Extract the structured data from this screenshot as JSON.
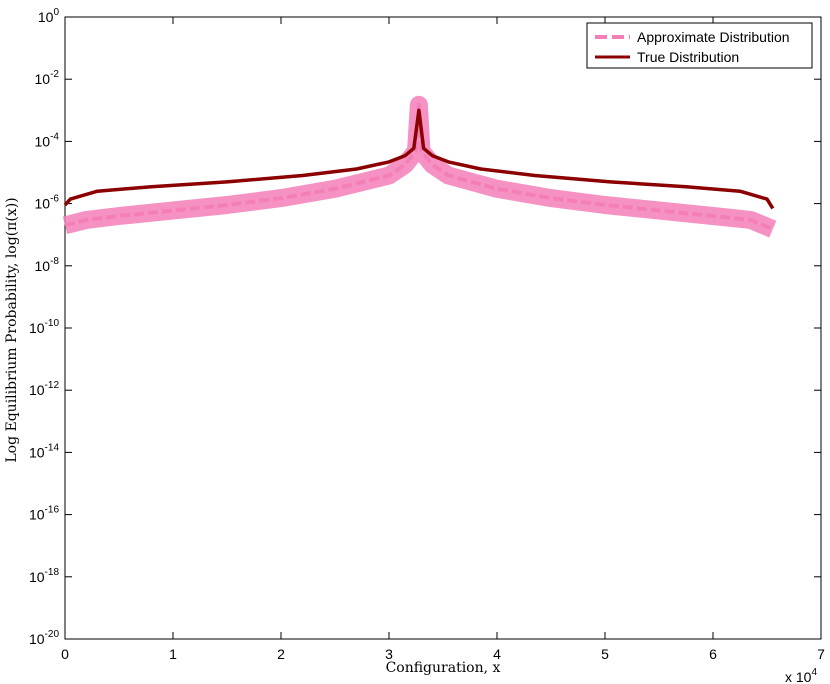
{
  "chart_data": {
    "type": "line",
    "xlabel": "Configuration, x",
    "ylabel": "Log Equilibrium Probability, log(π(x))",
    "x_scale_note": "x 10",
    "x_scale_exponent": "4",
    "xlim": [
      0,
      70000
    ],
    "ylim": [
      1e-20,
      1
    ],
    "y_scale": "log",
    "x_ticks": [
      "0",
      "1",
      "2",
      "3",
      "4",
      "5",
      "6",
      "7"
    ],
    "y_ticks": [
      {
        "base": "10",
        "exp": "0"
      },
      {
        "base": "10",
        "exp": "-2"
      },
      {
        "base": "10",
        "exp": "-4"
      },
      {
        "base": "10",
        "exp": "-6"
      },
      {
        "base": "10",
        "exp": "-8"
      },
      {
        "base": "10",
        "exp": "-10"
      },
      {
        "base": "10",
        "exp": "-12"
      },
      {
        "base": "10",
        "exp": "-14"
      },
      {
        "base": "10",
        "exp": "-16"
      },
      {
        "base": "10",
        "exp": "-18"
      },
      {
        "base": "10",
        "exp": "-20"
      }
    ],
    "legend_position": "top-right",
    "grid": false,
    "series": [
      {
        "name": "Approximate Distribution",
        "style": "dashed",
        "color": "#f47fb8",
        "x": [
          0,
          2000,
          5000,
          10000,
          15000,
          20000,
          25000,
          30000,
          31500,
          32500,
          32768,
          33000,
          34000,
          35500,
          40000,
          45000,
          50000,
          55000,
          60000,
          63500,
          65536
        ],
        "y": [
          2e-07,
          3e-07,
          4e-07,
          6e-07,
          9e-07,
          1.5e-06,
          3e-06,
          8e-06,
          1.8e-05,
          5e-05,
          0.0015,
          5e-05,
          1.8e-05,
          8e-06,
          3e-06,
          1.5e-06,
          9e-07,
          6e-07,
          4e-07,
          3e-07,
          1.5e-07
        ]
      },
      {
        "name": "True Distribution",
        "style": "solid",
        "color": "#8b0000",
        "x": [
          0,
          500,
          3000,
          8000,
          15000,
          22000,
          27000,
          30000,
          31500,
          32300,
          32768,
          33200,
          34000,
          35500,
          38500,
          43500,
          50500,
          57500,
          62500,
          65000,
          65536
        ],
        "y": [
          9e-07,
          1.4e-06,
          2.5e-06,
          3.5e-06,
          5e-06,
          8e-06,
          1.3e-05,
          2.2e-05,
          3.5e-05,
          6e-05,
          0.001,
          6e-05,
          3.5e-05,
          2.2e-05,
          1.3e-05,
          8e-06,
          5e-06,
          3.5e-06,
          2.5e-06,
          1.4e-06,
          7e-07
        ]
      }
    ]
  }
}
